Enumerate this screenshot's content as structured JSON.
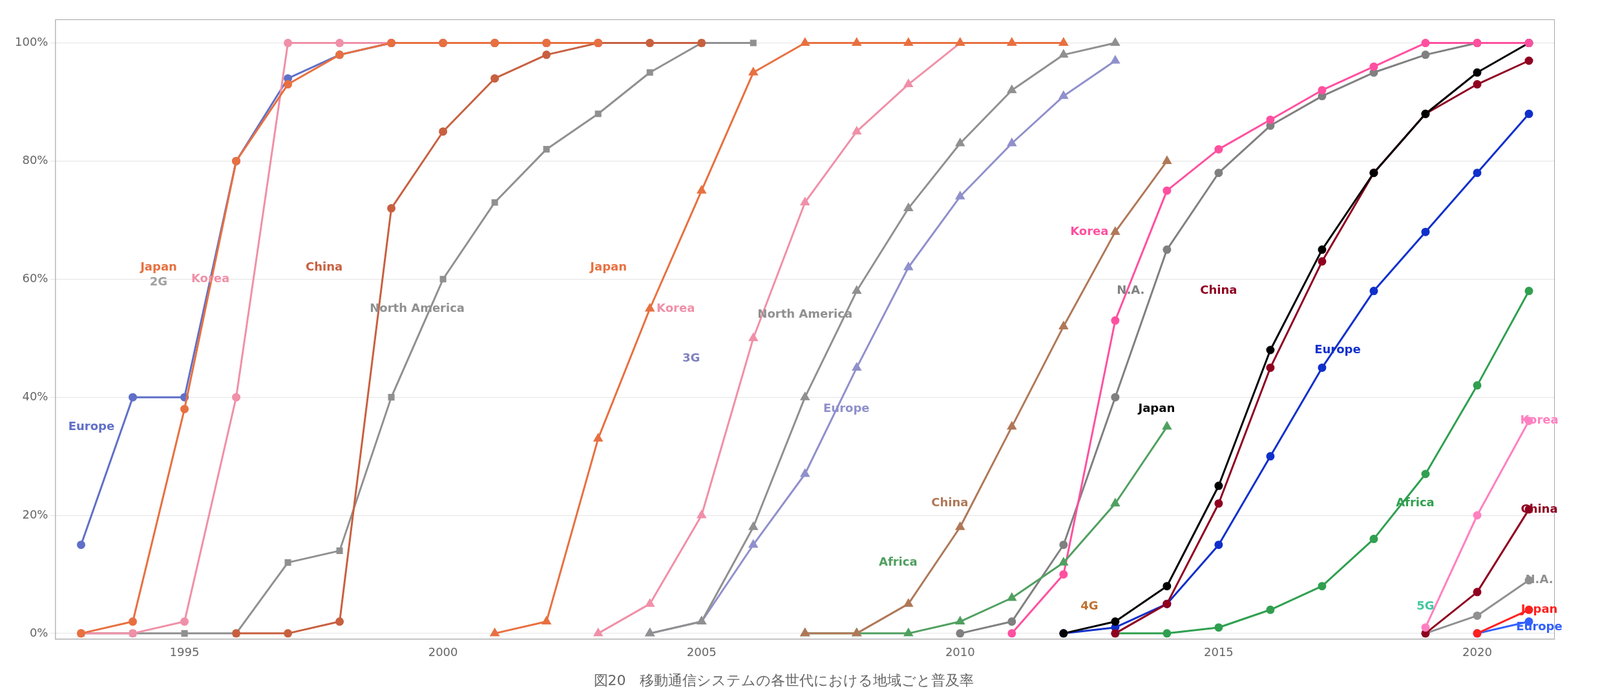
{
  "chart_data": {
    "type": "line",
    "title": "図20　移動通信システムの各世代における地域ごと普及率",
    "xlim": [
      1992.5,
      2021.5
    ],
    "xticks": [
      1995,
      2000,
      2005,
      2010,
      2015,
      2020
    ],
    "ylim": [
      -0.01,
      1.04
    ],
    "yticks": [
      {
        "value": 0,
        "label": "0%"
      },
      {
        "value": 0.2,
        "label": "20%"
      },
      {
        "value": 0.4,
        "label": "40%"
      },
      {
        "value": 0.6,
        "label": "60%"
      },
      {
        "value": 0.8,
        "label": "80%"
      },
      {
        "value": 1.0,
        "label": "100%"
      }
    ],
    "grid": "y",
    "series": [
      {
        "color": "#E87040",
        "marker": "circle",
        "x": [
          1993,
          1994,
          1995,
          1996,
          1997,
          1998,
          1999,
          2000,
          2001,
          2002,
          2003
        ],
        "values": [
          0.0,
          0.02,
          0.38,
          0.8,
          0.93,
          0.98,
          1.0,
          1.0,
          1.0,
          1.0,
          1.0
        ]
      },
      {
        "color": "#F090A8",
        "marker": "circle",
        "x": [
          1993,
          1994,
          1995,
          1996,
          1997,
          1998,
          1999,
          2000,
          2001,
          2002,
          2003
        ],
        "values": [
          0.0,
          0.0,
          0.02,
          0.4,
          1.0,
          1.0,
          1.0,
          1.0,
          1.0,
          1.0,
          1.0
        ]
      },
      {
        "color": "#6070C8",
        "marker": "circle",
        "x": [
          1993,
          1994,
          1995,
          1996,
          1997,
          1998,
          1999,
          2000,
          2001,
          2002,
          2003
        ],
        "values": [
          0.15,
          0.4,
          0.4,
          0.8,
          0.94,
          0.98,
          1.0,
          1.0,
          1.0,
          1.0,
          1.0
        ]
      },
      {
        "color": "#C86040",
        "marker": "circle",
        "x": [
          1996,
          1997,
          1998,
          1999,
          2000,
          2001,
          2002,
          2003,
          2004,
          2005
        ],
        "values": [
          0.0,
          0.0,
          0.02,
          0.72,
          0.85,
          0.94,
          0.98,
          1.0,
          1.0,
          1.0
        ]
      },
      {
        "color": "#909090",
        "marker": "square",
        "x": [
          1993,
          1994,
          1995,
          1996,
          1997,
          1998,
          1999,
          2000,
          2001,
          2002,
          2003,
          2004,
          2005,
          2006
        ],
        "values": [
          0.0,
          0.0,
          0.0,
          0.0,
          0.12,
          0.14,
          0.4,
          0.6,
          0.73,
          0.82,
          0.88,
          0.95,
          1.0,
          1.0
        ]
      },
      {
        "color": "#E87040",
        "marker": "triangle",
        "x": [
          2001,
          2002,
          2003,
          2004,
          2005,
          2006,
          2007,
          2008,
          2009,
          2010,
          2011,
          2012
        ],
        "values": [
          0.0,
          0.02,
          0.33,
          0.55,
          0.75,
          0.95,
          1.0,
          1.0,
          1.0,
          1.0,
          1.0,
          1.0
        ]
      },
      {
        "color": "#F090A8",
        "marker": "triangle",
        "x": [
          2003,
          2004,
          2005,
          2006,
          2007,
          2008,
          2009,
          2010,
          2011,
          2012
        ],
        "values": [
          0.0,
          0.05,
          0.2,
          0.5,
          0.73,
          0.85,
          0.93,
          1.0,
          1.0,
          1.0
        ]
      },
      {
        "color": "#909090",
        "marker": "triangle",
        "x": [
          2004,
          2005,
          2006,
          2007,
          2008,
          2009,
          2010,
          2011,
          2012,
          2013
        ],
        "values": [
          0.0,
          0.02,
          0.18,
          0.4,
          0.58,
          0.72,
          0.83,
          0.92,
          0.98,
          1.0
        ]
      },
      {
        "color": "#9090CC",
        "marker": "triangle",
        "x": [
          2004,
          2005,
          2006,
          2007,
          2008,
          2009,
          2010,
          2011,
          2012,
          2013
        ],
        "values": [
          0.0,
          0.02,
          0.15,
          0.27,
          0.45,
          0.62,
          0.74,
          0.83,
          0.91,
          0.97
        ]
      },
      {
        "color": "#B07858",
        "marker": "triangle",
        "x": [
          2007,
          2008,
          2009,
          2010,
          2011,
          2012,
          2013,
          2014
        ],
        "values": [
          0.0,
          0.0,
          0.05,
          0.18,
          0.35,
          0.52,
          0.68,
          0.8
        ]
      },
      {
        "color": "#50A060",
        "marker": "triangle",
        "x": [
          2007,
          2008,
          2009,
          2010,
          2011,
          2012,
          2013,
          2014
        ],
        "values": [
          0.0,
          0.0,
          0.0,
          0.02,
          0.06,
          0.12,
          0.22,
          0.35
        ]
      },
      {
        "color": "#FF50A0",
        "marker": "circle",
        "x": [
          2011,
          2012,
          2013,
          2014,
          2015,
          2016,
          2017,
          2018,
          2019,
          2020,
          2021
        ],
        "values": [
          0.0,
          0.1,
          0.53,
          0.75,
          0.82,
          0.87,
          0.92,
          0.96,
          1.0,
          1.0,
          1.0
        ]
      },
      {
        "color": "#808080",
        "marker": "circle",
        "x": [
          2010,
          2011,
          2012,
          2013,
          2014,
          2015,
          2016,
          2017,
          2018,
          2019,
          2020,
          2021
        ],
        "values": [
          0.0,
          0.02,
          0.15,
          0.4,
          0.65,
          0.78,
          0.86,
          0.91,
          0.95,
          0.98,
          1.0,
          1.0
        ]
      },
      {
        "color": "#000000",
        "marker": "circle",
        "x": [
          2012,
          2013,
          2014,
          2015,
          2016,
          2017,
          2018,
          2019,
          2020,
          2021
        ],
        "values": [
          0.0,
          0.02,
          0.08,
          0.25,
          0.48,
          0.65,
          0.78,
          0.88,
          0.95,
          1.0
        ]
      },
      {
        "color": "#900020",
        "marker": "circle",
        "x": [
          2013,
          2014,
          2015,
          2016,
          2017,
          2018,
          2019,
          2020,
          2021
        ],
        "values": [
          0.0,
          0.05,
          0.22,
          0.45,
          0.63,
          0.78,
          0.88,
          0.93,
          0.97
        ]
      },
      {
        "color": "#1030CC",
        "marker": "circle",
        "x": [
          2012,
          2013,
          2014,
          2015,
          2016,
          2017,
          2018,
          2019,
          2020,
          2021
        ],
        "values": [
          0.0,
          0.01,
          0.05,
          0.15,
          0.3,
          0.45,
          0.58,
          0.68,
          0.78,
          0.88
        ]
      },
      {
        "color": "#30A050",
        "marker": "circle",
        "x": [
          2013,
          2014,
          2015,
          2016,
          2017,
          2018,
          2019,
          2020,
          2021
        ],
        "values": [
          0.0,
          0.0,
          0.01,
          0.04,
          0.08,
          0.16,
          0.27,
          0.42,
          0.58
        ]
      },
      {
        "color": "#FF80C0",
        "marker": "circle",
        "x": [
          2019,
          2020,
          2021
        ],
        "values": [
          0.01,
          0.2,
          0.36
        ]
      },
      {
        "color": "#900020",
        "marker": "circle",
        "x": [
          2019,
          2020,
          2021
        ],
        "values": [
          0.0,
          0.07,
          0.21
        ]
      },
      {
        "color": "#909090",
        "marker": "circle",
        "x": [
          2019,
          2020,
          2021
        ],
        "values": [
          0.0,
          0.03,
          0.09
        ]
      },
      {
        "color": "#FF2020",
        "marker": "circle",
        "x": [
          2020,
          2021
        ],
        "values": [
          0.0,
          0.04
        ]
      },
      {
        "color": "#3060FF",
        "marker": "circle",
        "x": [
          2020,
          2021
        ],
        "values": [
          0.0,
          0.02
        ]
      }
    ],
    "annotations": [
      {
        "text": "2G",
        "x": 1994.5,
        "y": 0.595,
        "color": "#A0A0A0"
      },
      {
        "text": "3G",
        "x": 2004.8,
        "y": 0.465,
        "color": "#8080C0"
      },
      {
        "text": "4G",
        "x": 2012.5,
        "y": 0.045,
        "color": "#C07030"
      },
      {
        "text": "5G",
        "x": 2019.0,
        "y": 0.045,
        "color": "#40C8A0"
      },
      {
        "text": "Japan",
        "x": 1994.5,
        "y": 0.62,
        "color": "#E87040"
      },
      {
        "text": "Korea",
        "x": 1995.5,
        "y": 0.6,
        "color": "#F090A8"
      },
      {
        "text": "Europe",
        "x": 1993.2,
        "y": 0.35,
        "color": "#6070C8"
      },
      {
        "text": "China",
        "x": 1997.7,
        "y": 0.62,
        "color": "#C86040"
      },
      {
        "text": "North America",
        "x": 1999.5,
        "y": 0.55,
        "color": "#909090"
      },
      {
        "text": "Japan",
        "x": 2003.2,
        "y": 0.62,
        "color": "#E87040"
      },
      {
        "text": "Korea",
        "x": 2004.5,
        "y": 0.55,
        "color": "#F090A8"
      },
      {
        "text": "North America",
        "x": 2007.0,
        "y": 0.54,
        "color": "#909090"
      },
      {
        "text": "Europe",
        "x": 2007.8,
        "y": 0.38,
        "color": "#9090CC"
      },
      {
        "text": "Africa",
        "x": 2008.8,
        "y": 0.12,
        "color": "#50A060"
      },
      {
        "text": "China",
        "x": 2009.8,
        "y": 0.22,
        "color": "#B07858"
      },
      {
        "text": "Korea",
        "x": 2012.5,
        "y": 0.68,
        "color": "#FF50A0"
      },
      {
        "text": "N.A.",
        "x": 2013.3,
        "y": 0.58,
        "color": "#808080"
      },
      {
        "text": "Japan",
        "x": 2013.8,
        "y": 0.38,
        "color": "#000000"
      },
      {
        "text": "China",
        "x": 2015.0,
        "y": 0.58,
        "color": "#900020"
      },
      {
        "text": "Europe",
        "x": 2017.3,
        "y": 0.48,
        "color": "#1030CC"
      },
      {
        "text": "Africa",
        "x": 2018.8,
        "y": 0.22,
        "color": "#30A050"
      },
      {
        "text": "Korea",
        "x": 2021.2,
        "y": 0.36,
        "color": "#FF80C0"
      },
      {
        "text": "China",
        "x": 2021.2,
        "y": 0.21,
        "color": "#900020"
      },
      {
        "text": "N.A.",
        "x": 2021.2,
        "y": 0.09,
        "color": "#909090"
      },
      {
        "text": "Japan",
        "x": 2021.2,
        "y": 0.04,
        "color": "#FF2020"
      },
      {
        "text": "Europe",
        "x": 2021.2,
        "y": 0.01,
        "color": "#3060FF"
      }
    ]
  }
}
